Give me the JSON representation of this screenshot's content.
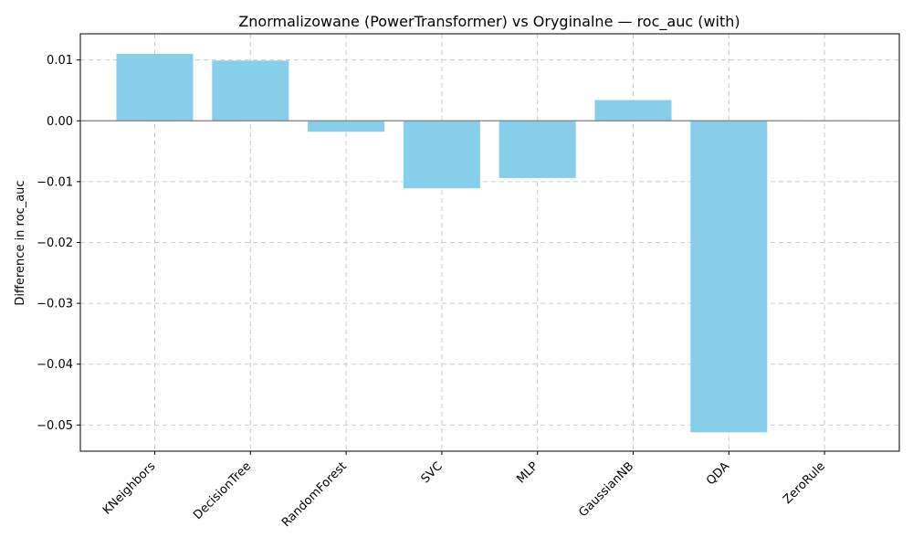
{
  "chart_data": {
    "type": "bar",
    "title": "Znormalizowane (PowerTransformer) vs Oryginalne — roc_auc (with)",
    "xlabel": "",
    "ylabel": "Difference in roc_auc",
    "categories": [
      "KNeighbors",
      "DecisionTree",
      "RandomForest",
      "SVC",
      "MLP",
      "GaussianNB",
      "QDA",
      "ZeroRule"
    ],
    "values": [
      0.011,
      0.0099,
      -0.0018,
      -0.0111,
      -0.0094,
      0.0034,
      -0.0512,
      0.0
    ],
    "ylim": [
      -0.0543,
      0.0143
    ],
    "yticks": [
      0.01,
      0.0,
      -0.01,
      -0.02,
      -0.03,
      -0.04,
      -0.05
    ],
    "ytick_labels": [
      "0.01",
      "0.00",
      "−0.01",
      "−0.02",
      "−0.03",
      "−0.04",
      "−0.05"
    ],
    "grid": true,
    "zero_line": true,
    "colors": {
      "bar": "#87ceeb",
      "zero_line": "#808080",
      "grid": "#cccccc"
    }
  }
}
